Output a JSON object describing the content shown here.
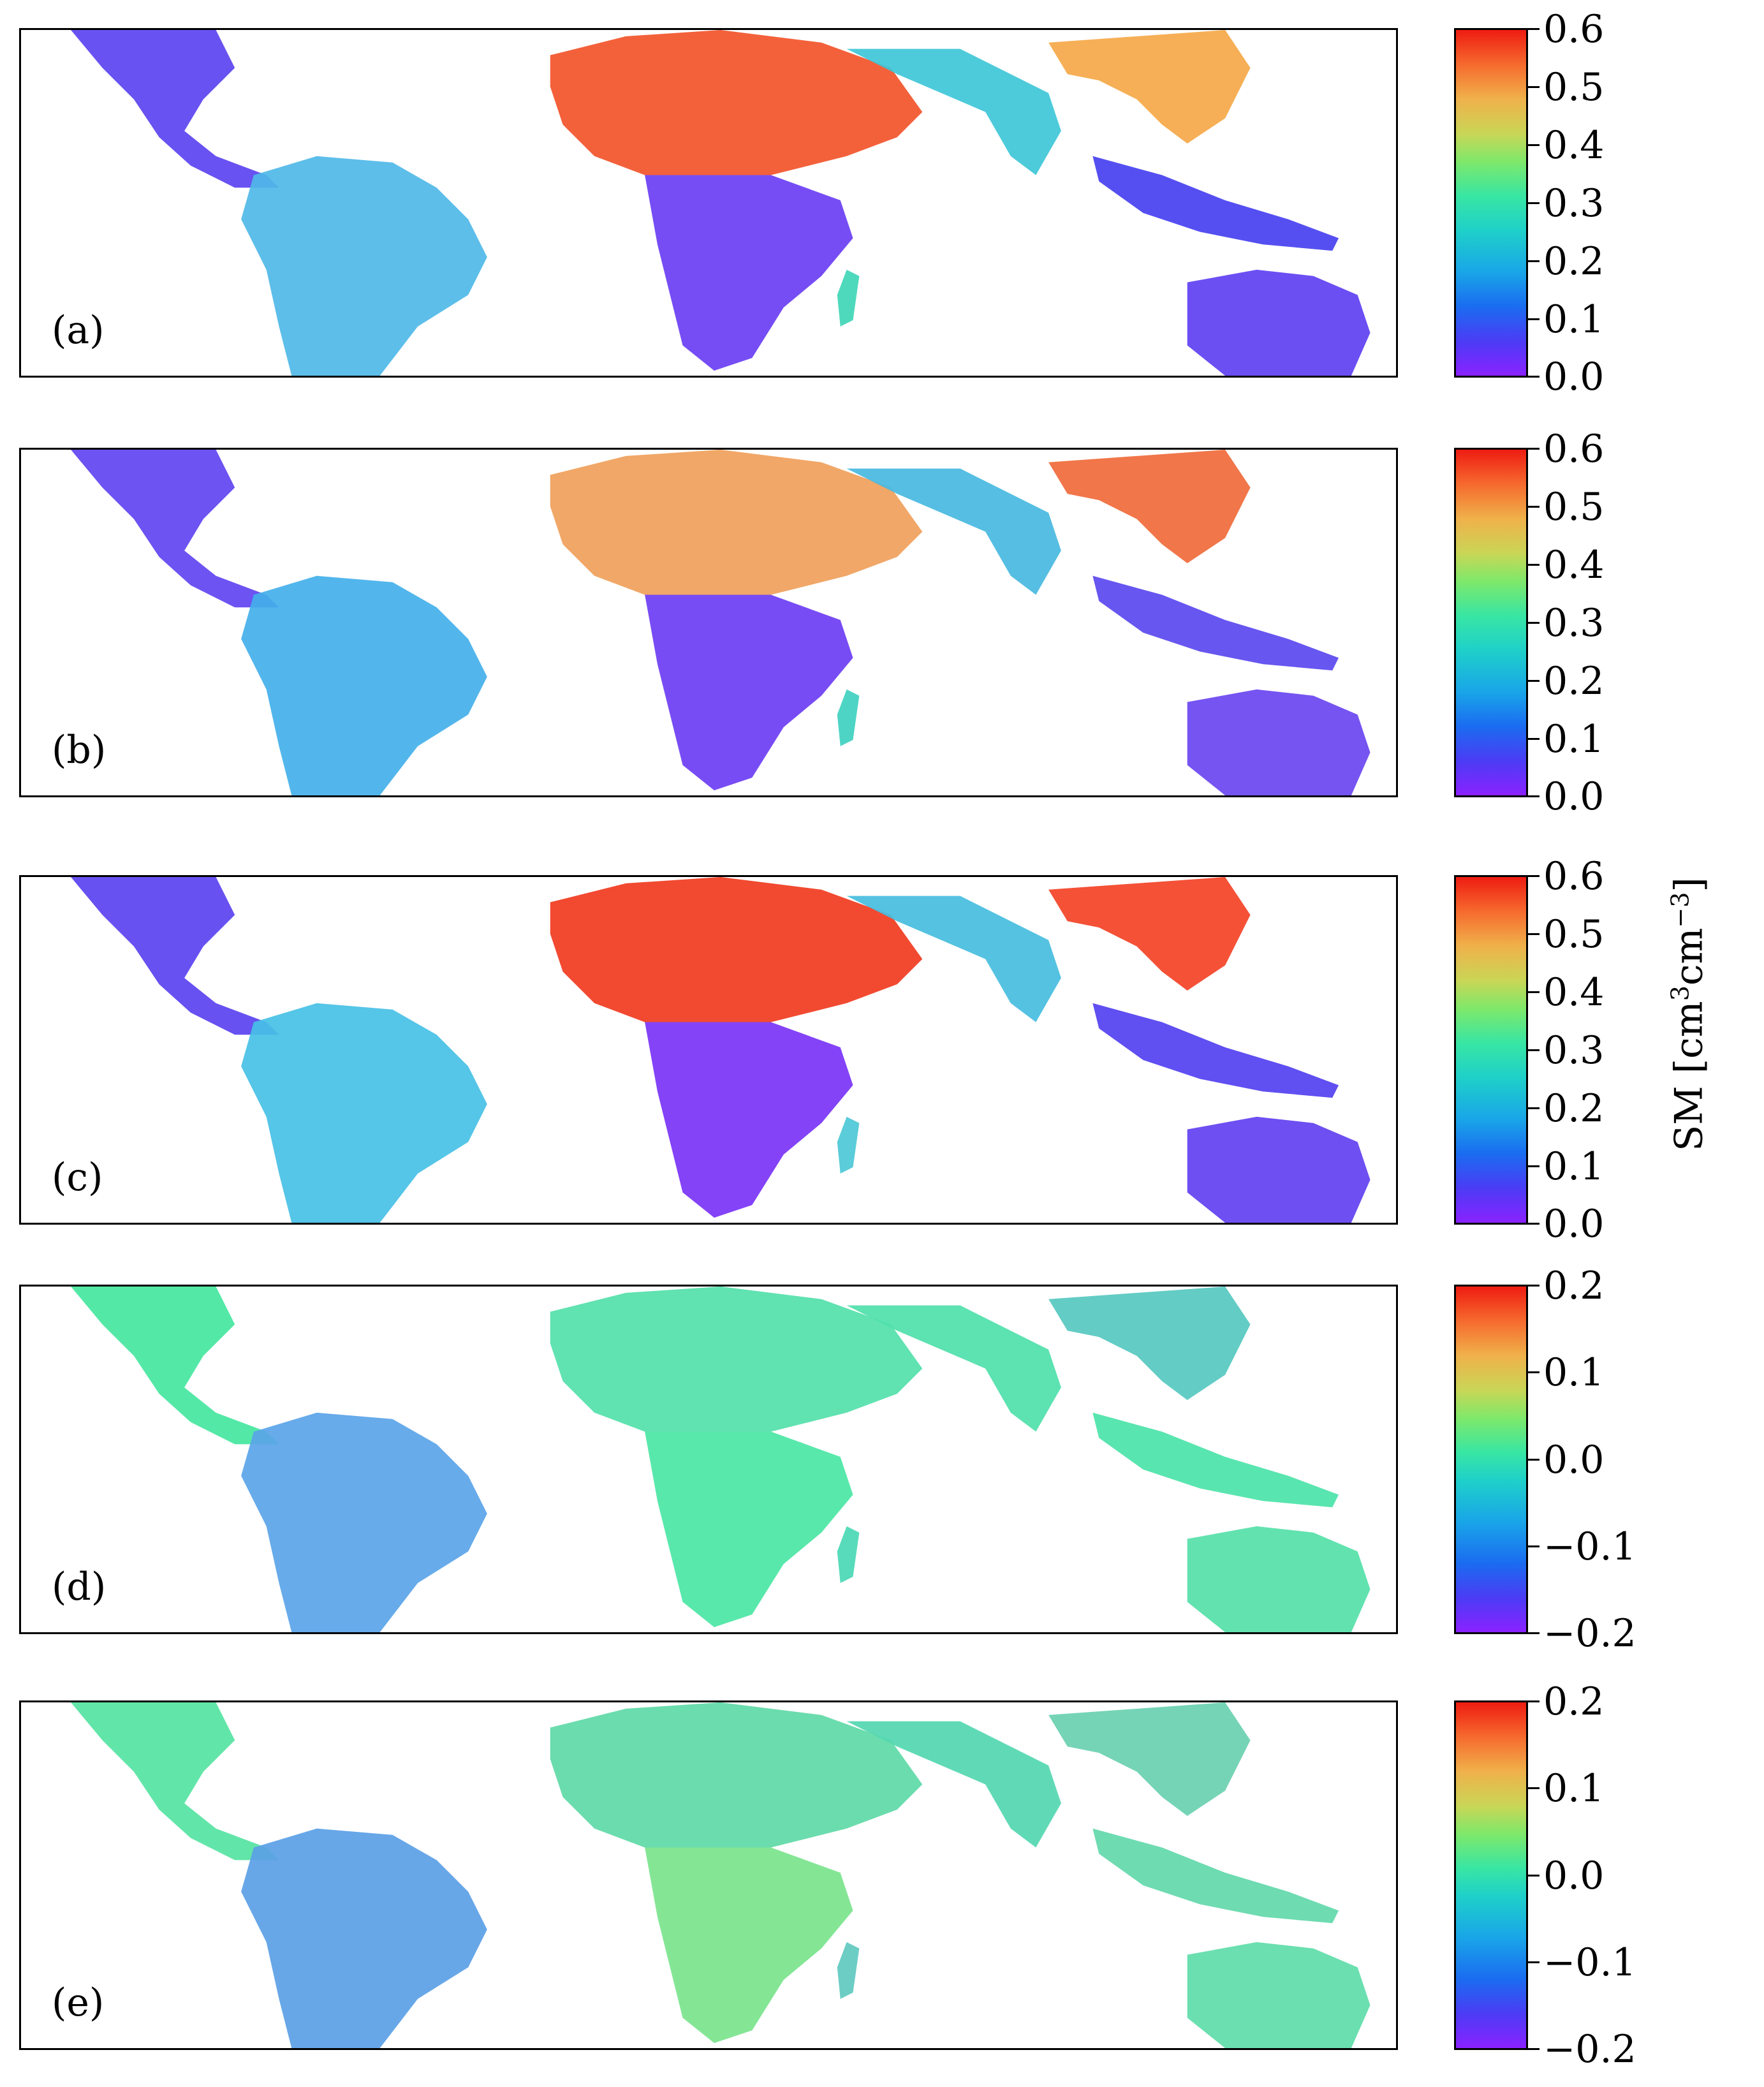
{
  "figure": {
    "panels": [
      {
        "label": "(a)",
        "scale": "sm"
      },
      {
        "label": "(b)",
        "scale": "sm"
      },
      {
        "label": "(c)",
        "scale": "sm"
      },
      {
        "label": "(d)",
        "scale": "diff"
      },
      {
        "label": "(e)",
        "scale": "diff"
      }
    ],
    "colorbars": {
      "sm": {
        "ticks": [
          "0.6",
          "0.5",
          "0.4",
          "0.3",
          "0.2",
          "0.1",
          "0.0"
        ],
        "range": [
          0.0,
          0.6
        ]
      },
      "diff": {
        "ticks": [
          "0.2",
          "0.1",
          "0.0",
          "−0.1",
          "−0.2"
        ],
        "range": [
          -0.2,
          0.2
        ]
      }
    },
    "unit_label": {
      "main": "SM [cm",
      "sup1": "3",
      "mid": "cm",
      "sup2": "−3",
      "end": "]"
    }
  },
  "colors": {
    "sm_low": "#8a22ff",
    "sm_mid": "#38e6a3",
    "sm_high": "#ee1c12",
    "land_dry": "#7a4cf0",
    "land_wet": "#e8321e",
    "diff_zero": "#45e6a0"
  }
}
